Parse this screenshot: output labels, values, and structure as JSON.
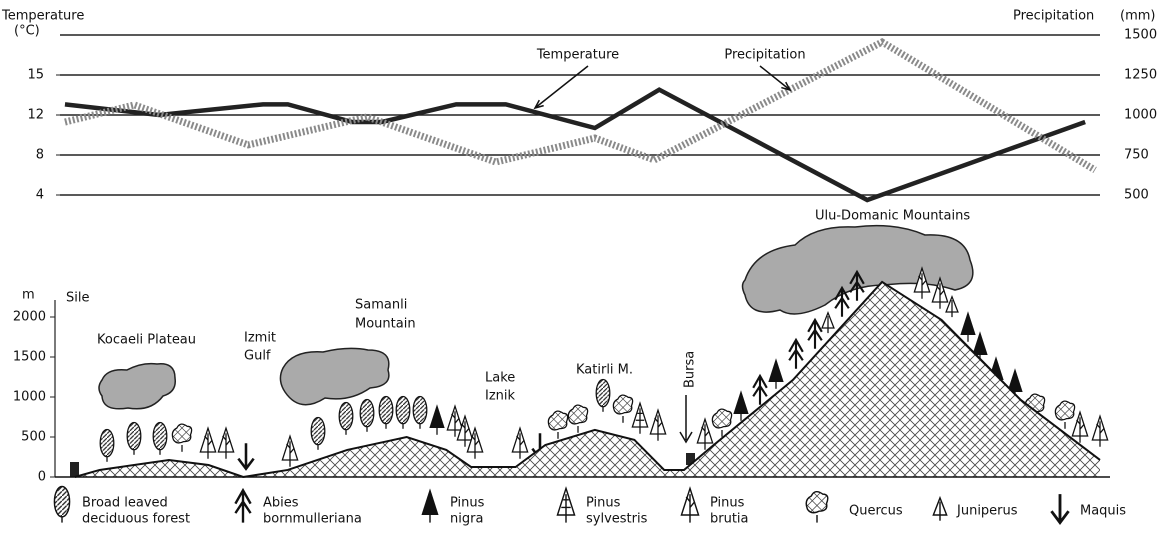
{
  "chart_data": [
    {
      "type": "line",
      "y_label": "Temperature",
      "y_unit": "(°C)",
      "y2_label": "Precipitation",
      "y2_unit": "(mm)",
      "xlim": [
        0,
        1050
      ],
      "yticks": [
        4,
        8,
        12,
        15
      ],
      "y2lim": [
        500,
        1500
      ],
      "y2ticks": [
        500,
        750,
        1000,
        1250,
        1500
      ],
      "grid": true,
      "series": [
        {
          "name": "Temperature",
          "color": "#222222",
          "x": [
            5,
            100,
            205,
            230,
            295,
            325,
            400,
            450,
            540,
            605,
            815,
            1035
          ],
          "values": [
            12.8,
            12,
            12.8,
            12.8,
            11.3,
            11.3,
            12.8,
            12.8,
            10.7,
            13.9,
            3.5,
            11.3
          ]
        },
        {
          "name": "Precipitation",
          "color": "#8a8a8a",
          "axis": "y2",
          "x": [
            5,
            75,
            190,
            310,
            440,
            540,
            600,
            830,
            1045
          ],
          "values": [
            956,
            1063,
            813,
            988,
            706,
            856,
            719,
            1456,
            656
          ]
        }
      ]
    },
    {
      "type": "area",
      "y_label": "m",
      "xlim": [
        0,
        1050
      ],
      "ylim": [
        0,
        2500
      ],
      "yticks": [
        0,
        500,
        1000,
        1500,
        2000
      ],
      "x": [
        15,
        40,
        110,
        150,
        185,
        230,
        290,
        350,
        390,
        415,
        460,
        490,
        540,
        580,
        610,
        630,
        660,
        740,
        830,
        890,
        970,
        1050
      ],
      "values": [
        0,
        88,
        213,
        150,
        0,
        88,
        338,
        500,
        338,
        125,
        125,
        400,
        588,
        463,
        88,
        88,
        400,
        1213,
        2438,
        1963,
        963,
        213
      ],
      "annotations": [
        "Sile",
        "Kocaeli Plateau",
        "Izmit",
        "Gulf",
        "Samanli",
        "Mountain",
        "Lake",
        "Iznik",
        "Katirli M.",
        "Bursa",
        "Ulu-Domanic Mountains"
      ]
    }
  ],
  "legend": [
    [
      "Broad leaved",
      "deciduous forest"
    ],
    [
      "Abies",
      "bornmulleriana"
    ],
    [
      "Pinus",
      "nigra"
    ],
    [
      "Pinus",
      "sylvestris"
    ],
    [
      "Pinus",
      "brutia"
    ],
    [
      "Quercus"
    ],
    [
      "Juniperus"
    ],
    [
      "Maquis"
    ]
  ]
}
